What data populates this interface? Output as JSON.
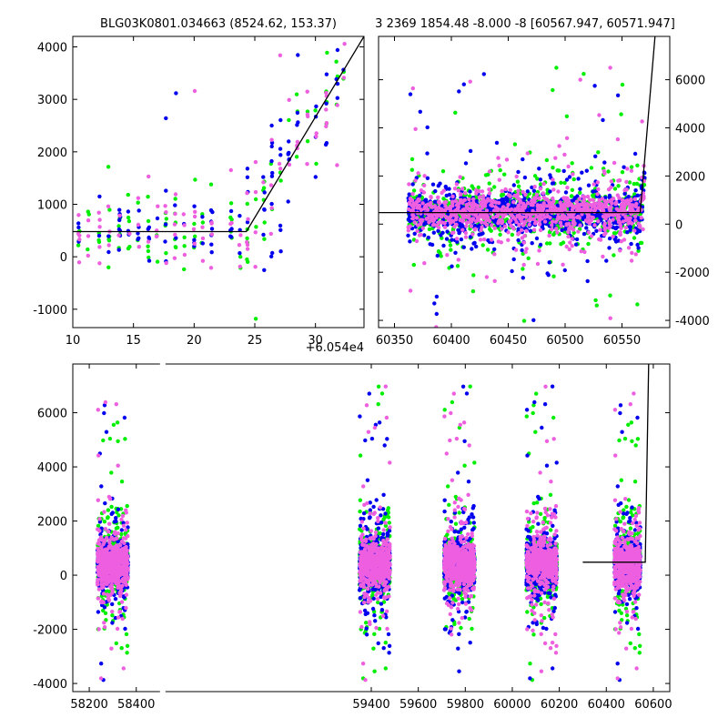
{
  "chart_data": [
    {
      "type": "scatter",
      "panel": "top-left",
      "title": "BLG03K0801.034663 (8524.62, 153.37)",
      "x_offset_label": "+6.054e4",
      "xlim": [
        10,
        34
      ],
      "ylim": [
        -1350,
        4200
      ],
      "x_ticks": [
        10,
        15,
        20,
        25,
        30
      ],
      "y_ticks": [
        -1000,
        0,
        1000,
        2000,
        3000,
        4000
      ],
      "y_axis_side": "left",
      "grid": false,
      "model_line": {
        "x": [
          10,
          24.3,
          34
        ],
        "y": [
          480,
          480,
          4200
        ]
      },
      "series": [
        {
          "color": "#0000ee",
          "description": "blue points"
        },
        {
          "color": "#00ee00",
          "description": "green points"
        },
        {
          "color": "#ee5fe0",
          "description": "magenta points"
        }
      ]
    },
    {
      "type": "scatter",
      "panel": "top-right",
      "title": "3 2369 1854.48 -8.000 -8 [60567.947, 60571.947]",
      "xlim": [
        60336,
        60592
      ],
      "ylim": [
        -4300,
        7800
      ],
      "x_ticks": [
        60350,
        60400,
        60450,
        60500,
        60550
      ],
      "y_ticks": [
        -4000,
        -2000,
        0,
        2000,
        4000,
        6000
      ],
      "y_axis_side": "right",
      "grid": false,
      "model_line": {
        "x": [
          60336,
          60566,
          60579
        ],
        "y": [
          480,
          480,
          7800
        ]
      },
      "series": [
        {
          "color": "#0000ee",
          "description": "blue points"
        },
        {
          "color": "#00ee00",
          "description": "green points"
        },
        {
          "color": "#ee5fe0",
          "description": "magenta points"
        }
      ]
    },
    {
      "type": "scatter",
      "panel": "bottom",
      "title": "",
      "xlim": [
        58130,
        60670
      ],
      "ylim": [
        -4300,
        7800
      ],
      "x_ticks": [
        58200,
        58400,
        59400,
        59600,
        59800,
        60000,
        60200,
        60400,
        60600
      ],
      "y_ticks": [
        -4000,
        -2000,
        0,
        2000,
        4000,
        6000
      ],
      "y_axis_side": "left",
      "grid": false,
      "axis_break": [
        58430,
        58595
      ],
      "model_line": {
        "x": [
          60300,
          60566,
          60580
        ],
        "y": [
          480,
          480,
          7800
        ]
      },
      "seasons": [
        {
          "center": 58300,
          "width": 130
        },
        {
          "center": 59415,
          "width": 130
        },
        {
          "center": 59775,
          "width": 130
        },
        {
          "center": 60125,
          "width": 130
        },
        {
          "center": 60490,
          "width": 110
        }
      ],
      "series": [
        {
          "color": "#0000ee",
          "description": "blue points"
        },
        {
          "color": "#00ee00",
          "description": "green points"
        },
        {
          "color": "#ee5fe0",
          "description": "magenta points"
        }
      ]
    }
  ]
}
